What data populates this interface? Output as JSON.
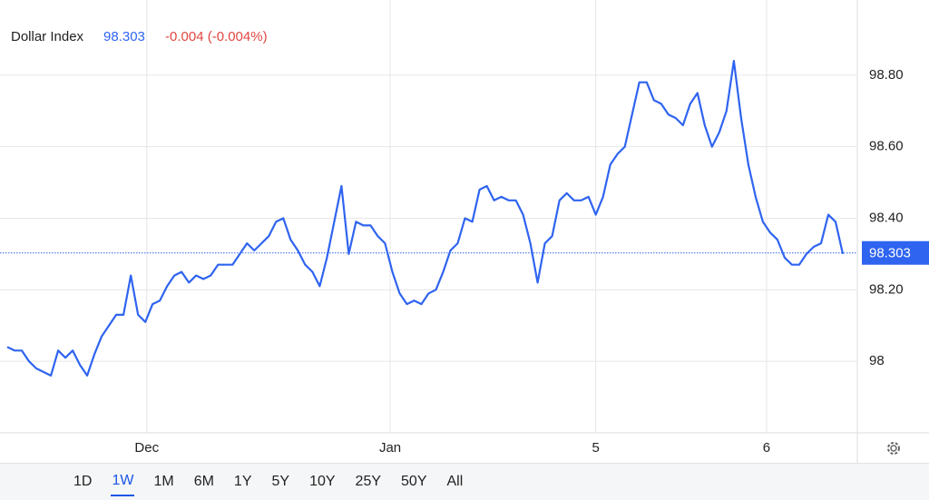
{
  "chart_data": {
    "type": "line",
    "title": "Dollar Index",
    "last_price": 98.303,
    "change_label": "-0.004 (-0.004%)",
    "color": "#2f64f0",
    "grid": true,
    "x": [
      1,
      2,
      3,
      4,
      5,
      6,
      7,
      8,
      9,
      10,
      11,
      12,
      13,
      14,
      15,
      16,
      17,
      18,
      19,
      20,
      21,
      22,
      23,
      24,
      25,
      26,
      27,
      28,
      29,
      30,
      31,
      32,
      33,
      34,
      35,
      36,
      37,
      38,
      39,
      40,
      41,
      42,
      43,
      44,
      45,
      46,
      47,
      48,
      49,
      50,
      51,
      52,
      53,
      54,
      55,
      56,
      57,
      58,
      59,
      60,
      61,
      62,
      63,
      64,
      65,
      66,
      67,
      68,
      69,
      70,
      71,
      72,
      73,
      74,
      75,
      76,
      77,
      78,
      79,
      80,
      81,
      82,
      83,
      84,
      85,
      86,
      87,
      88,
      89,
      90,
      91,
      92,
      93,
      94,
      95,
      96,
      97,
      98,
      99,
      100,
      101,
      102,
      103,
      104,
      105,
      106,
      107,
      108,
      109,
      110,
      111,
      112,
      113,
      114,
      115,
      116
    ],
    "values": [
      98.04,
      98.03,
      98.03,
      98.0,
      97.98,
      97.97,
      97.96,
      98.03,
      98.01,
      98.03,
      97.99,
      97.96,
      98.02,
      98.07,
      98.1,
      98.13,
      98.13,
      98.24,
      98.13,
      98.11,
      98.16,
      98.17,
      98.21,
      98.24,
      98.25,
      98.22,
      98.24,
      98.23,
      98.24,
      98.27,
      98.27,
      98.27,
      98.3,
      98.33,
      98.31,
      98.33,
      98.35,
      98.39,
      98.4,
      98.34,
      98.31,
      98.27,
      98.25,
      98.21,
      98.29,
      98.39,
      98.49,
      98.3,
      98.39,
      98.38,
      98.38,
      98.35,
      98.33,
      98.25,
      98.19,
      98.16,
      98.17,
      98.16,
      98.19,
      98.2,
      98.25,
      98.31,
      98.33,
      98.4,
      98.39,
      98.48,
      98.49,
      98.45,
      98.46,
      98.45,
      98.45,
      98.41,
      98.33,
      98.22,
      98.33,
      98.35,
      98.45,
      98.47,
      98.45,
      98.45,
      98.46,
      98.41,
      98.46,
      98.55,
      98.58,
      98.6,
      98.69,
      98.78,
      98.78,
      98.73,
      98.72,
      98.69,
      98.68,
      98.66,
      98.72,
      98.75,
      98.66,
      98.6,
      98.64,
      98.7,
      98.84,
      98.68,
      98.55,
      98.46,
      98.39,
      98.36,
      98.34,
      98.29,
      98.27,
      98.27,
      98.3,
      98.32,
      98.33,
      98.41,
      98.39,
      98.3
    ],
    "xlim": [
      0,
      118
    ],
    "ylim": [
      97.8,
      99.0
    ],
    "xticks": [
      {
        "value": 20.2,
        "label": "Dec"
      },
      {
        "value": 53.7,
        "label": "Jan"
      },
      {
        "value": 82,
        "label": "5"
      },
      {
        "value": 105.5,
        "label": "6"
      }
    ],
    "yticks": [
      98,
      {
        "value": 98.2,
        "label": "98.20"
      },
      {
        "value": 98.4,
        "label": "98.40"
      },
      {
        "value": 98.6,
        "label": "98.60"
      },
      {
        "value": 98.8,
        "label": "98.80"
      }
    ]
  },
  "range_buttons": {
    "options": [
      "1D",
      "1W",
      "1M",
      "6M",
      "1Y",
      "5Y",
      "10Y",
      "25Y",
      "50Y",
      "All"
    ],
    "selected": "1W"
  }
}
